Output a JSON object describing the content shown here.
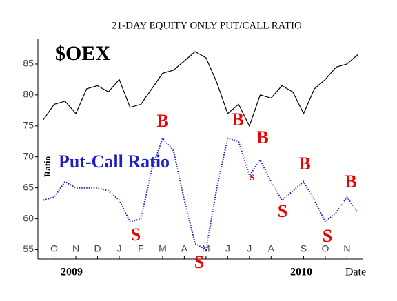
{
  "chart_data": {
    "type": "line",
    "title": "21-DAY EQUITY ONLY PUT/CALL RATIO",
    "y_label": "Ratio",
    "x_label": "Date",
    "year_labels": [
      "2009",
      "2010"
    ],
    "categories": [
      null,
      "O",
      null,
      "N",
      null,
      "D",
      null,
      "J",
      null,
      "F",
      null,
      "M",
      null,
      "A",
      null,
      "M",
      null,
      "J",
      null,
      "J",
      null,
      "A",
      null,
      null,
      "S",
      null,
      "O",
      null,
      "N",
      null
    ],
    "series": [
      {
        "name": "$OEX",
        "color": "#000000",
        "values": [
          76,
          78.5,
          79,
          77,
          81,
          81.5,
          80.5,
          82.5,
          78,
          78.5,
          81,
          83.5,
          84,
          85.5,
          87,
          86,
          82,
          77,
          78.5,
          75,
          80,
          79.5,
          81.5,
          80.5,
          77,
          81,
          82.5,
          84.5,
          85,
          86.5
        ]
      },
      {
        "name": "Put-Call Ratio",
        "color": "#2020c0",
        "values": [
          63,
          63.5,
          66,
          65,
          65,
          65,
          64.5,
          63,
          59.5,
          60,
          68,
          73,
          71,
          63,
          56,
          55,
          65,
          73,
          72.5,
          67,
          69.5,
          66,
          63,
          64.5,
          66,
          63,
          59.5,
          61,
          63.5,
          61
        ]
      }
    ],
    "annotations": [
      "B",
      "S",
      "S",
      "B",
      "B",
      "s",
      "S",
      "B",
      "S",
      "B"
    ],
    "annotation_color": "#ee0000",
    "ylim": [
      53.5,
      89
    ],
    "yticks": [
      55,
      60,
      65,
      70,
      75,
      80,
      85
    ]
  }
}
